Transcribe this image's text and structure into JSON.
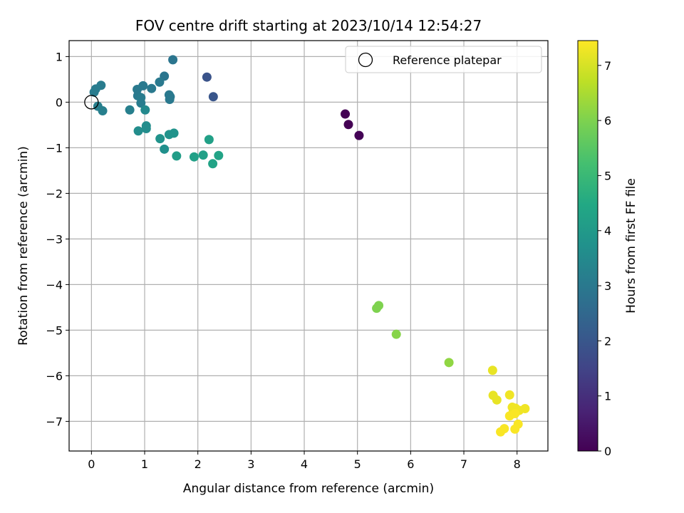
{
  "chart_data": {
    "type": "scatter",
    "title": "FOV centre drift starting at 2023/10/14 12:54:27",
    "xlabel": "Angular distance from reference (arcmin)",
    "ylabel": "Rotation from reference (arcmin)",
    "xlim": [
      -0.42,
      8.58
    ],
    "ylim": [
      -7.65,
      1.35
    ],
    "xticks": [
      "0",
      "1",
      "2",
      "3",
      "4",
      "5",
      "6",
      "7",
      "8"
    ],
    "yticks": [
      "1",
      "0",
      "−1",
      "−2",
      "−3",
      "−4",
      "−5",
      "−6",
      "−7"
    ],
    "grid": true,
    "colormap": "viridis",
    "colorbar": {
      "label": "Hours from first FF file",
      "range": [
        0,
        7.45
      ],
      "ticks": [
        "0",
        "1",
        "2",
        "3",
        "4",
        "5",
        "6",
        "7"
      ]
    },
    "legend": {
      "position": "top-right",
      "entries": [
        "Reference platepar"
      ]
    },
    "reference_point": {
      "x": 0,
      "y": 0
    },
    "points": [
      {
        "x": 4.77,
        "y": -0.26,
        "c": 0.0
      },
      {
        "x": 4.83,
        "y": -0.49,
        "c": 0.0
      },
      {
        "x": 5.03,
        "y": -0.73,
        "c": 0.05
      },
      {
        "x": 2.17,
        "y": 0.55,
        "c": 1.9
      },
      {
        "x": 2.29,
        "y": 0.12,
        "c": 2.0
      },
      {
        "x": 1.37,
        "y": 0.57,
        "c": 2.9
      },
      {
        "x": 1.53,
        "y": 0.93,
        "c": 2.9
      },
      {
        "x": 1.28,
        "y": 0.44,
        "c": 3.0
      },
      {
        "x": 1.13,
        "y": 0.3,
        "c": 3.0
      },
      {
        "x": 0.97,
        "y": 0.36,
        "c": 3.0
      },
      {
        "x": 0.86,
        "y": 0.28,
        "c": 3.0
      },
      {
        "x": 0.87,
        "y": 0.14,
        "c": 3.0
      },
      {
        "x": 0.93,
        "y": 0.1,
        "c": 3.1
      },
      {
        "x": 0.93,
        "y": -0.02,
        "c": 3.1
      },
      {
        "x": 1.46,
        "y": 0.16,
        "c": 3.0
      },
      {
        "x": 1.47,
        "y": 0.06,
        "c": 3.0
      },
      {
        "x": 1.48,
        "y": 0.12,
        "c": 3.0
      },
      {
        "x": 0.18,
        "y": 0.37,
        "c": 3.1
      },
      {
        "x": 0.08,
        "y": 0.29,
        "c": 3.1
      },
      {
        "x": 0.05,
        "y": 0.22,
        "c": 3.1
      },
      {
        "x": 0.12,
        "y": -0.09,
        "c": 3.2
      },
      {
        "x": 0.21,
        "y": -0.19,
        "c": 3.2
      },
      {
        "x": 0.72,
        "y": -0.17,
        "c": 3.2
      },
      {
        "x": 1.01,
        "y": -0.17,
        "c": 3.5
      },
      {
        "x": 1.03,
        "y": -0.52,
        "c": 3.6
      },
      {
        "x": 1.03,
        "y": -0.58,
        "c": 3.6
      },
      {
        "x": 0.88,
        "y": -0.63,
        "c": 3.6
      },
      {
        "x": 1.29,
        "y": -0.8,
        "c": 3.8
      },
      {
        "x": 1.46,
        "y": -0.71,
        "c": 3.8
      },
      {
        "x": 1.55,
        "y": -0.68,
        "c": 3.8
      },
      {
        "x": 1.37,
        "y": -1.03,
        "c": 3.7
      },
      {
        "x": 1.6,
        "y": -1.18,
        "c": 4.1
      },
      {
        "x": 1.93,
        "y": -1.2,
        "c": 4.2
      },
      {
        "x": 2.1,
        "y": -1.16,
        "c": 4.2
      },
      {
        "x": 2.21,
        "y": -0.82,
        "c": 4.2
      },
      {
        "x": 2.39,
        "y": -1.17,
        "c": 4.3
      },
      {
        "x": 2.28,
        "y": -1.35,
        "c": 4.3
      },
      {
        "x": 5.4,
        "y": -4.46,
        "c": 6.0
      },
      {
        "x": 5.36,
        "y": -4.52,
        "c": 6.0
      },
      {
        "x": 5.73,
        "y": -5.09,
        "c": 6.1
      },
      {
        "x": 6.72,
        "y": -5.71,
        "c": 6.2
      },
      {
        "x": 7.54,
        "y": -5.88,
        "c": 7.2
      },
      {
        "x": 7.55,
        "y": -6.43,
        "c": 7.2
      },
      {
        "x": 7.62,
        "y": -6.53,
        "c": 7.2
      },
      {
        "x": 7.86,
        "y": -6.42,
        "c": 7.3
      },
      {
        "x": 7.91,
        "y": -6.69,
        "c": 7.3
      },
      {
        "x": 7.97,
        "y": -6.71,
        "c": 7.3
      },
      {
        "x": 7.93,
        "y": -6.76,
        "c": 7.3
      },
      {
        "x": 8.04,
        "y": -6.76,
        "c": 7.3
      },
      {
        "x": 8.15,
        "y": -6.72,
        "c": 7.3
      },
      {
        "x": 7.86,
        "y": -6.88,
        "c": 7.4
      },
      {
        "x": 7.96,
        "y": -6.83,
        "c": 7.4
      },
      {
        "x": 8.02,
        "y": -7.06,
        "c": 7.4
      },
      {
        "x": 7.96,
        "y": -7.17,
        "c": 7.4
      },
      {
        "x": 7.76,
        "y": -7.16,
        "c": 7.4
      },
      {
        "x": 7.69,
        "y": -7.23,
        "c": 7.4
      }
    ]
  }
}
